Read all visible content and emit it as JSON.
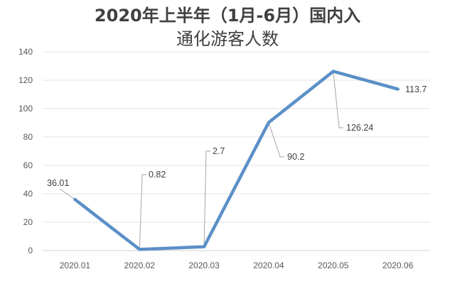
{
  "title_line1": "2020年上半年（1月-6月）国内入",
  "title_line2": "通化游客人数",
  "chart_data": {
    "type": "line",
    "title": "2020年上半年（1月-6月）国内入通化游客人数",
    "xlabel": "",
    "ylabel": "",
    "categories": [
      "2020.01",
      "2020.02",
      "2020.03",
      "2020.04",
      "2020.05",
      "2020.06"
    ],
    "series": [
      {
        "name": "游客人数",
        "values": [
          36.01,
          0.82,
          2.7,
          90.2,
          126.24,
          113.7
        ],
        "color": "#5B8FC7"
      }
    ],
    "data_labels": [
      "36.01",
      "0.82",
      "2.7",
      "90.2",
      "126.24",
      "113.7"
    ],
    "ylim": [
      0,
      140
    ],
    "yticks": [
      "0",
      "20",
      "40",
      "60",
      "80",
      "100",
      "120",
      "140"
    ],
    "grid": true,
    "legend": "none"
  }
}
